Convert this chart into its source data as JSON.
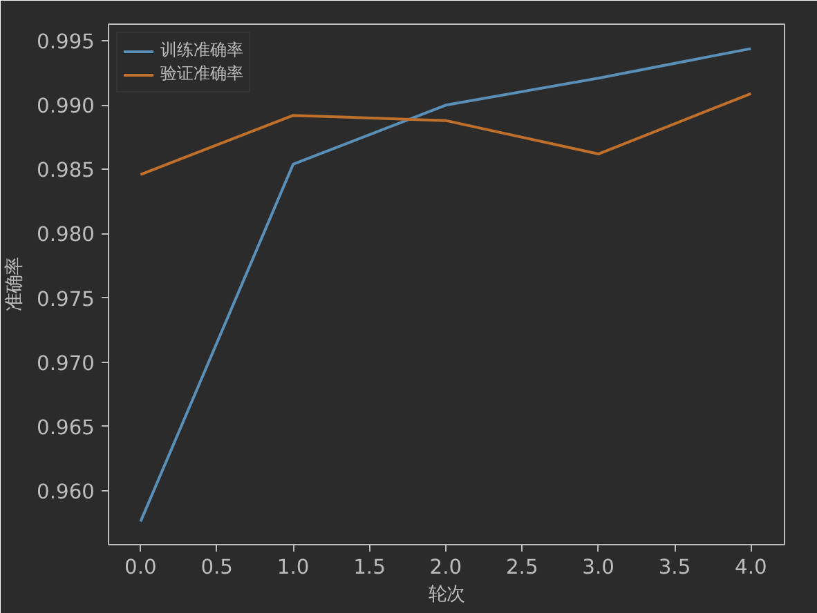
{
  "chart_data": {
    "type": "line",
    "xlabel": "轮次",
    "ylabel": "准确率",
    "x": [
      0,
      1,
      2,
      3,
      4
    ],
    "series": [
      {
        "name": "训练准确率",
        "color": "#5a8fb8",
        "values": [
          0.9576,
          0.9854,
          0.99,
          0.9921,
          0.9944
        ]
      },
      {
        "name": "验证准确率",
        "color": "#c0702a",
        "values": [
          0.9846,
          0.9892,
          0.9888,
          0.9862,
          0.9909
        ]
      }
    ],
    "xlim": [
      -0.21,
      4.22
    ],
    "ylim": [
      0.9558,
      0.9963
    ],
    "xticks": [
      {
        "value": 0,
        "label": "0.0"
      },
      {
        "value": 0.5,
        "label": "0.5"
      },
      {
        "value": 1,
        "label": "1.0"
      },
      {
        "value": 1.5,
        "label": "1.5"
      },
      {
        "value": 2,
        "label": "2.0"
      },
      {
        "value": 2.5,
        "label": "2.5"
      },
      {
        "value": 3,
        "label": "3.0"
      },
      {
        "value": 3.5,
        "label": "3.5"
      },
      {
        "value": 4,
        "label": "4.0"
      }
    ],
    "yticks": [
      {
        "value": 0.96,
        "label": "0.960"
      },
      0.965,
      {
        "value": 0.97,
        "label": "0.970"
      },
      0.975,
      {
        "value": 0.98,
        "label": "0.980"
      },
      0.985,
      {
        "value": 0.99,
        "label": "0.990"
      },
      0.995
    ],
    "legend": "top left",
    "grid": false,
    "marker": "none",
    "line_style": "solid"
  }
}
